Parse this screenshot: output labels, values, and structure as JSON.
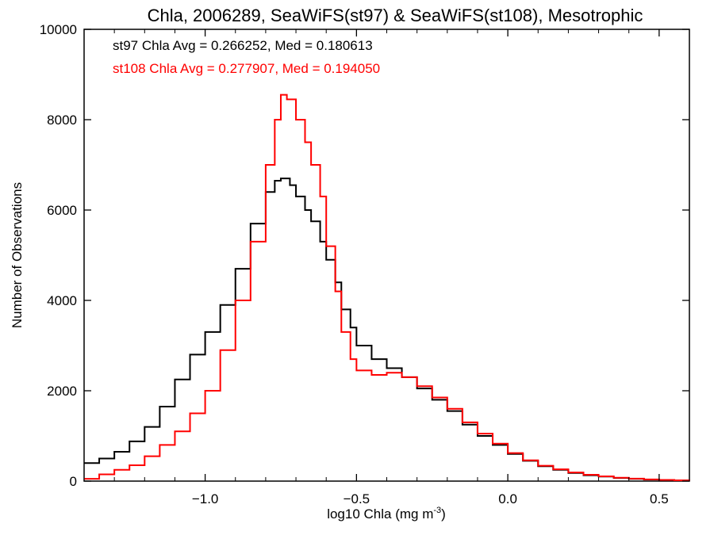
{
  "chart_data": {
    "type": "line",
    "title": "Chla, 2006289, SeaWiFS(st97) & SeaWiFS(st108), Mesotrophic",
    "xlabel": "log10 Chla (mg m",
    "xlabel_unit_sup": "-3",
    "xlabel_close": ")",
    "ylabel": "Number of Observations",
    "xlim": [
      -1.4,
      0.6
    ],
    "ylim": [
      0,
      10000
    ],
    "x_ticks": [
      {
        "value": -1.0,
        "label": "−1.0"
      },
      {
        "value": -0.5,
        "label": "−0.5"
      },
      {
        "value": 0.0,
        "label": "0.0"
      },
      {
        "value": 0.5,
        "label": "0.5"
      }
    ],
    "y_ticks": [
      {
        "value": 0,
        "label": "0"
      },
      {
        "value": 2000,
        "label": "2000"
      },
      {
        "value": 4000,
        "label": "4000"
      },
      {
        "value": 6000,
        "label": "6000"
      },
      {
        "value": 8000,
        "label": "8000"
      },
      {
        "value": 10000,
        "label": "10000"
      }
    ],
    "grid": false,
    "annotations": [
      {
        "text": "st97 Chla Avg = 0.266252, Med = 0.180613",
        "color": "#000000"
      },
      {
        "text": "st108 Chla Avg = 0.277907, Med = 0.194050",
        "color": "#ff0000"
      }
    ],
    "series": [
      {
        "color": "#000000",
        "step": true,
        "points": [
          [
            -1.4,
            400
          ],
          [
            -1.35,
            500
          ],
          [
            -1.3,
            650
          ],
          [
            -1.25,
            880
          ],
          [
            -1.2,
            1200
          ],
          [
            -1.15,
            1650
          ],
          [
            -1.1,
            2250
          ],
          [
            -1.05,
            2800
          ],
          [
            -1.0,
            3300
          ],
          [
            -0.95,
            3900
          ],
          [
            -0.9,
            4700
          ],
          [
            -0.85,
            5700
          ],
          [
            -0.8,
            6400
          ],
          [
            -0.77,
            6650
          ],
          [
            -0.75,
            6700
          ],
          [
            -0.72,
            6550
          ],
          [
            -0.7,
            6300
          ],
          [
            -0.67,
            6000
          ],
          [
            -0.65,
            5750
          ],
          [
            -0.62,
            5300
          ],
          [
            -0.6,
            4900
          ],
          [
            -0.57,
            4400
          ],
          [
            -0.55,
            3800
          ],
          [
            -0.52,
            3400
          ],
          [
            -0.5,
            3000
          ],
          [
            -0.45,
            2700
          ],
          [
            -0.4,
            2500
          ],
          [
            -0.35,
            2300
          ],
          [
            -0.3,
            2050
          ],
          [
            -0.25,
            1800
          ],
          [
            -0.2,
            1550
          ],
          [
            -0.15,
            1250
          ],
          [
            -0.1,
            1000
          ],
          [
            -0.05,
            800
          ],
          [
            0.0,
            600
          ],
          [
            0.05,
            450
          ],
          [
            0.1,
            330
          ],
          [
            0.15,
            250
          ],
          [
            0.2,
            180
          ],
          [
            0.25,
            130
          ],
          [
            0.3,
            100
          ],
          [
            0.35,
            70
          ],
          [
            0.4,
            50
          ],
          [
            0.45,
            35
          ],
          [
            0.5,
            25
          ],
          [
            0.55,
            15
          ],
          [
            0.6,
            10
          ]
        ]
      },
      {
        "color": "#ff0000",
        "step": true,
        "points": [
          [
            -1.4,
            50
          ],
          [
            -1.35,
            150
          ],
          [
            -1.3,
            250
          ],
          [
            -1.25,
            350
          ],
          [
            -1.2,
            550
          ],
          [
            -1.15,
            800
          ],
          [
            -1.1,
            1100
          ],
          [
            -1.05,
            1500
          ],
          [
            -1.0,
            2000
          ],
          [
            -0.95,
            2900
          ],
          [
            -0.9,
            4000
          ],
          [
            -0.85,
            5300
          ],
          [
            -0.8,
            7000
          ],
          [
            -0.77,
            8000
          ],
          [
            -0.75,
            8550
          ],
          [
            -0.73,
            8450
          ],
          [
            -0.7,
            8000
          ],
          [
            -0.67,
            7500
          ],
          [
            -0.65,
            7000
          ],
          [
            -0.62,
            6300
          ],
          [
            -0.6,
            5200
          ],
          [
            -0.57,
            4200
          ],
          [
            -0.55,
            3300
          ],
          [
            -0.52,
            2700
          ],
          [
            -0.5,
            2450
          ],
          [
            -0.45,
            2350
          ],
          [
            -0.4,
            2400
          ],
          [
            -0.35,
            2300
          ],
          [
            -0.3,
            2100
          ],
          [
            -0.25,
            1850
          ],
          [
            -0.2,
            1600
          ],
          [
            -0.15,
            1300
          ],
          [
            -0.1,
            1050
          ],
          [
            -0.05,
            830
          ],
          [
            0.0,
            620
          ],
          [
            0.05,
            460
          ],
          [
            0.1,
            340
          ],
          [
            0.15,
            260
          ],
          [
            0.2,
            190
          ],
          [
            0.25,
            140
          ],
          [
            0.3,
            105
          ],
          [
            0.35,
            75
          ],
          [
            0.4,
            55
          ],
          [
            0.45,
            38
          ],
          [
            0.5,
            27
          ],
          [
            0.55,
            17
          ],
          [
            0.6,
            12
          ]
        ]
      }
    ]
  }
}
